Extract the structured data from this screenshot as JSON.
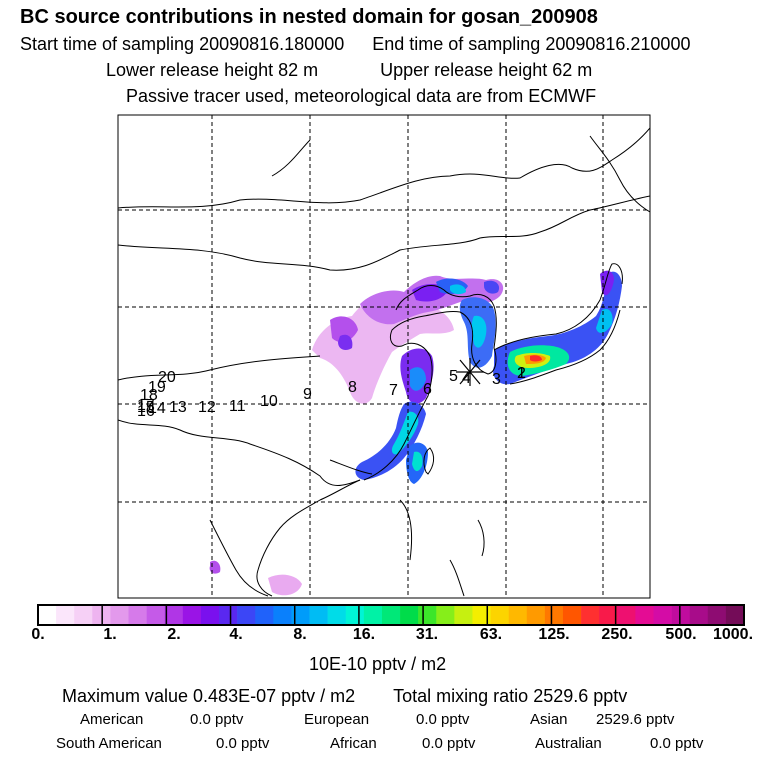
{
  "header": {
    "title": "BC  source contributions in nested domain for gosan_200908",
    "start_label": "Start time of sampling 20090816.180000",
    "end_label": "End time of sampling 20090816.210000",
    "lower_release": "Lower release height   82 m",
    "upper_release": "Upper release height   62 m",
    "tracer_note": "Passive tracer used, meteorological data are from ECMWF"
  },
  "map": {
    "receptor_marker": "receptor-star-icon",
    "trajectory_labels": [
      "1",
      "2",
      "3",
      "4",
      "5",
      "6",
      "7",
      "8",
      "9",
      "10",
      "11",
      "12",
      "13",
      "14",
      "15",
      "16",
      "17",
      "18",
      "19",
      "20"
    ]
  },
  "colorbar": {
    "labels": [
      "0.",
      "1.",
      "2.",
      "4.",
      "8.",
      "16.",
      "31.",
      "63.",
      "125.",
      "250.",
      "500.",
      "1000."
    ],
    "colors": [
      "#ffffff",
      "#fbe6fb",
      "#f6d0f6",
      "#eeb4f0",
      "#e399ec",
      "#d67aea",
      "#c55ae8",
      "#b036e6",
      "#9a14e6",
      "#7a10ee",
      "#5a28f0",
      "#3c46f6",
      "#2062fa",
      "#0a80fc",
      "#009cfa",
      "#00bcf4",
      "#00dce8",
      "#00f4d6",
      "#00f2a6",
      "#00e878",
      "#00dc4a",
      "#3ce62a",
      "#86ee1a",
      "#c6f010",
      "#f4ee00",
      "#fcd400",
      "#ffb800",
      "#ff9a00",
      "#ff7800",
      "#ff5600",
      "#ff3030",
      "#f81a4a",
      "#ee1070",
      "#e40c94",
      "#d40ca6",
      "#c00c9e",
      "#a80c8a",
      "#8e0c72",
      "#740c58"
    ],
    "unit": "10E-10 pptv / m2"
  },
  "summary": {
    "max_value": "Maximum value  0.483E-07 pptv / m2",
    "total_mixing": "Total mixing ratio     2529.6 pptv",
    "american_label": "American",
    "american_value": "0.0 pptv",
    "european_label": "European",
    "european_value": "0.0 pptv",
    "asian_label": "Asian",
    "asian_value": "2529.6 pptv",
    "south_american_label": "South American",
    "south_american_value": "0.0 pptv",
    "african_label": "African",
    "african_value": "0.0 pptv",
    "australian_label": "Australian",
    "australian_value": "0.0 pptv"
  }
}
